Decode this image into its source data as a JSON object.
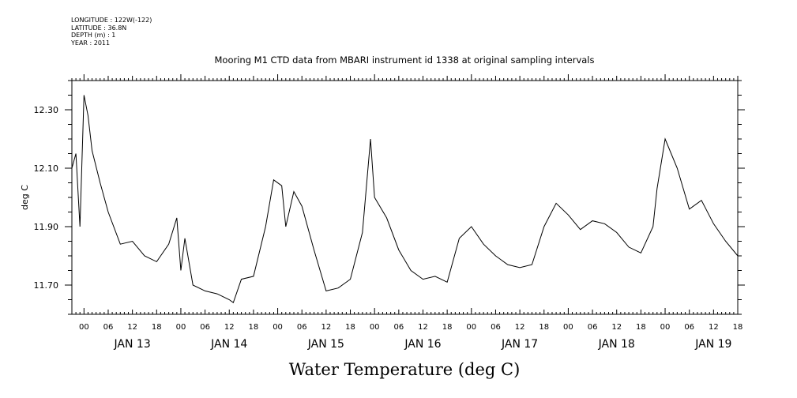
{
  "meta": {
    "longitude": "LONGITUDE : 122W(-122)",
    "latitude": "LATITUDE : 36.8N",
    "depth": "DEPTH (m) : 1",
    "year": "YEAR : 2011"
  },
  "chart_data": {
    "type": "line",
    "title": "Mooring M1 CTD data from MBARI instrument id 1338 at original sampling intervals",
    "bottom_title": "Water Temperature (deg C)",
    "xlabel": "",
    "ylabel": "deg C",
    "ylim": [
      11.6,
      12.4
    ],
    "y_ticks": [
      "12.30",
      "12.10",
      "11.90",
      "11.70"
    ],
    "y_tick_values": [
      12.3,
      12.1,
      11.9,
      11.7
    ],
    "x_range": [
      "2011-01-12T21:00",
      "2011-01-19T18:00"
    ],
    "x_hour_labels": [
      "00",
      "06",
      "12",
      "18",
      "00",
      "06",
      "12",
      "18",
      "00",
      "06",
      "12",
      "18",
      "00",
      "06",
      "12",
      "18",
      "00",
      "06",
      "12",
      "18",
      "00",
      "06",
      "12",
      "18",
      "00",
      "06",
      "12",
      "18"
    ],
    "x_day_labels": [
      "JAN 13",
      "JAN 14",
      "JAN 15",
      "JAN 16",
      "JAN 17",
      "JAN 18",
      "JAN 19"
    ],
    "grid": false,
    "legend": "none",
    "series": [
      {
        "color": "#000000",
        "x": [
          "2011-01-12T21:00",
          "2011-01-12T22:00",
          "2011-01-12T23:00",
          "2011-01-13T00:00",
          "2011-01-13T01:00",
          "2011-01-13T02:00",
          "2011-01-13T04:00",
          "2011-01-13T06:00",
          "2011-01-13T09:00",
          "2011-01-13T12:00",
          "2011-01-13T15:00",
          "2011-01-13T18:00",
          "2011-01-13T21:00",
          "2011-01-13T23:00",
          "2011-01-14T00:00",
          "2011-01-14T01:00",
          "2011-01-14T03:00",
          "2011-01-14T06:00",
          "2011-01-14T09:00",
          "2011-01-14T12:00",
          "2011-01-14T13:00",
          "2011-01-14T15:00",
          "2011-01-14T18:00",
          "2011-01-14T21:00",
          "2011-01-14T23:00",
          "2011-01-15T01:00",
          "2011-01-15T02:00",
          "2011-01-15T04:00",
          "2011-01-15T06:00",
          "2011-01-15T09:00",
          "2011-01-15T12:00",
          "2011-01-15T15:00",
          "2011-01-15T18:00",
          "2011-01-15T21:00",
          "2011-01-15T23:00",
          "2011-01-16T00:00",
          "2011-01-16T03:00",
          "2011-01-16T06:00",
          "2011-01-16T09:00",
          "2011-01-16T12:00",
          "2011-01-16T15:00",
          "2011-01-16T18:00",
          "2011-01-16T21:00",
          "2011-01-17T00:00",
          "2011-01-17T03:00",
          "2011-01-17T06:00",
          "2011-01-17T09:00",
          "2011-01-17T12:00",
          "2011-01-17T15:00",
          "2011-01-17T18:00",
          "2011-01-17T21:00",
          "2011-01-18T00:00",
          "2011-01-18T03:00",
          "2011-01-18T06:00",
          "2011-01-18T09:00",
          "2011-01-18T12:00",
          "2011-01-18T15:00",
          "2011-01-18T18:00",
          "2011-01-18T21:00",
          "2011-01-18T22:00",
          "2011-01-19T00:00",
          "2011-01-19T03:00",
          "2011-01-19T06:00",
          "2011-01-19T09:00",
          "2011-01-19T12:00",
          "2011-01-19T15:00",
          "2011-01-19T18:00"
        ],
        "y": [
          12.1,
          12.15,
          11.9,
          12.35,
          12.28,
          12.16,
          12.05,
          11.95,
          11.84,
          11.85,
          11.8,
          11.78,
          11.84,
          11.93,
          11.75,
          11.86,
          11.7,
          11.68,
          11.67,
          11.65,
          11.64,
          11.72,
          11.73,
          11.9,
          12.06,
          12.04,
          11.9,
          12.02,
          11.97,
          11.82,
          11.68,
          11.69,
          11.72,
          11.88,
          12.2,
          12.0,
          11.93,
          11.82,
          11.75,
          11.72,
          11.73,
          11.71,
          11.86,
          11.9,
          11.84,
          11.8,
          11.77,
          11.76,
          11.77,
          11.9,
          11.98,
          11.94,
          11.89,
          11.92,
          11.91,
          11.88,
          11.83,
          11.81,
          11.9,
          12.03,
          12.2,
          12.1,
          11.96,
          11.99,
          11.91,
          11.85,
          11.8
        ]
      }
    ]
  }
}
